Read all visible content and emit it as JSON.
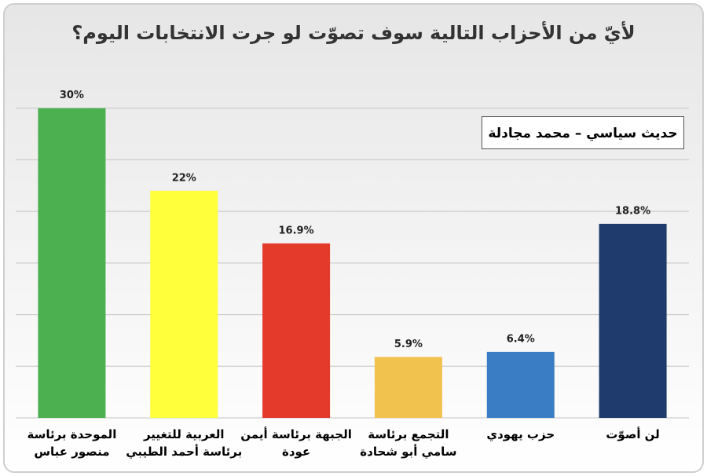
{
  "chart_data": {
    "type": "bar",
    "title": "لأيّ من الأحزاب التالية سوف تصوّت لو جرت الانتخابات اليوم؟",
    "annotation": "حديث سياسي – محمد مجادلة",
    "categories": [
      "الموحدة برئاسة منصور عباس",
      "العربية للتغيير برئاسة أحمد الطيبي",
      "الجبهة برئاسة أيمن عودة",
      "التجمع برئاسة سامي أبو شحادة",
      "حزب يهودي",
      "لن أصوّت"
    ],
    "values": [
      30,
      22,
      16.9,
      5.9,
      6.4,
      18.8
    ],
    "value_labels": [
      "30%",
      "22%",
      "16.9%",
      "5.9%",
      "6.4%",
      "18.8%"
    ],
    "colors": [
      "#4caf50",
      "#ffff3c",
      "#e43a2c",
      "#f2c24e",
      "#3b7dc4",
      "#1f3a6c"
    ],
    "ylim": [
      0,
      35
    ],
    "yticks": [
      0,
      5,
      10,
      15,
      20,
      25,
      30
    ],
    "grid": true
  }
}
